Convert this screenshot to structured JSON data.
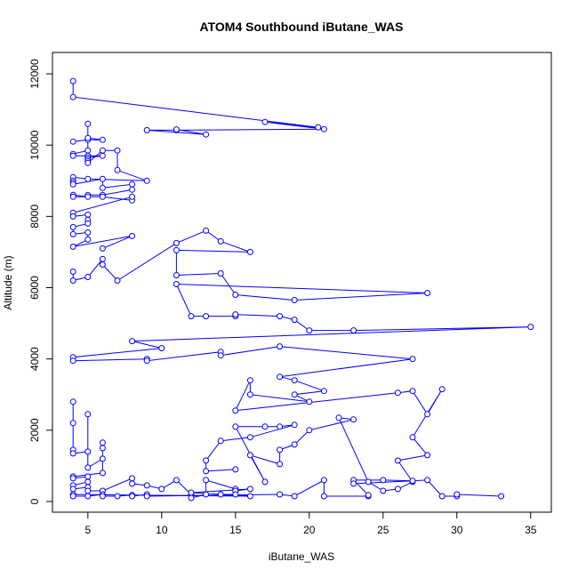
{
  "chart_data": {
    "type": "scatter",
    "title": "ATOM4 Southbound iButane_WAS",
    "xlabel": "iButane_WAS",
    "ylabel": "Altitude (m)",
    "xlim": [
      2.6,
      36.4
    ],
    "ylim": [
      -300,
      12600
    ],
    "xticks": [
      5,
      10,
      15,
      20,
      25,
      30,
      35
    ],
    "yticks": [
      0,
      2000,
      4000,
      6000,
      8000,
      10000,
      12000
    ],
    "grid": false,
    "legend": "none",
    "style": "points connected by lines, open circles",
    "color": "#0000ff",
    "series": [
      {
        "points": [
          [
            4,
            11800
          ],
          [
            4,
            11350
          ],
          [
            20.6,
            10500
          ],
          [
            17,
            10650
          ],
          [
            21,
            10450
          ],
          [
            11,
            10420
          ],
          [
            9,
            10420
          ],
          [
            13,
            10300
          ],
          [
            11,
            10440
          ]
        ]
      },
      {
        "points": [
          [
            4,
            10100
          ],
          [
            5,
            10150
          ],
          [
            6,
            10150
          ],
          [
            5,
            10200
          ],
          [
            5,
            10600
          ],
          [
            5,
            9850
          ],
          [
            4,
            9750
          ],
          [
            4,
            9700
          ],
          [
            5,
            9700
          ],
          [
            6,
            9700
          ],
          [
            5,
            9650
          ],
          [
            5,
            9600
          ],
          [
            5,
            9550
          ],
          [
            5,
            9500
          ],
          [
            6,
            9850
          ],
          [
            7,
            9850
          ],
          [
            7,
            9300
          ],
          [
            9,
            9000
          ],
          [
            5,
            9050
          ],
          [
            4,
            9100
          ],
          [
            4,
            9000
          ],
          [
            4,
            8950
          ],
          [
            4,
            8900
          ],
          [
            6,
            9050
          ],
          [
            6,
            8800
          ],
          [
            8,
            8900
          ],
          [
            8,
            8750
          ],
          [
            6,
            8600
          ],
          [
            5,
            8600
          ],
          [
            5,
            8550
          ],
          [
            4,
            8600
          ],
          [
            4,
            8550
          ],
          [
            6,
            8550
          ],
          [
            8,
            8450
          ],
          [
            8,
            8550
          ],
          [
            4,
            8100
          ],
          [
            4,
            8000
          ],
          [
            5,
            8050
          ],
          [
            5,
            7900
          ],
          [
            5,
            7800
          ],
          [
            4,
            7700
          ],
          [
            4,
            7500
          ],
          [
            5,
            7550
          ],
          [
            5,
            7350
          ],
          [
            4,
            7150
          ],
          [
            8,
            7450
          ],
          [
            6,
            7100
          ]
        ]
      },
      {
        "points": [
          [
            4,
            6450
          ],
          [
            4,
            6200
          ],
          [
            5,
            6300
          ],
          [
            6,
            6800
          ],
          [
            6,
            6650
          ],
          [
            7,
            6200
          ],
          [
            11,
            7250
          ],
          [
            13,
            7600
          ],
          [
            14,
            7300
          ],
          [
            16,
            7000
          ],
          [
            11,
            7050
          ],
          [
            11,
            6350
          ],
          [
            14,
            6400
          ],
          [
            15,
            5800
          ],
          [
            19,
            5650
          ],
          [
            28,
            5850
          ],
          [
            11,
            6100
          ],
          [
            12,
            5200
          ],
          [
            13,
            5200
          ],
          [
            15,
            5200
          ],
          [
            15,
            5250
          ],
          [
            18,
            5200
          ],
          [
            19,
            5100
          ],
          [
            20,
            4800
          ],
          [
            23,
            4800
          ],
          [
            35,
            4900
          ],
          [
            8,
            4500
          ],
          [
            10,
            4300
          ],
          [
            4,
            4050
          ],
          [
            4,
            3950
          ],
          [
            9,
            4000
          ],
          [
            9,
            3950
          ],
          [
            14,
            4200
          ],
          [
            14,
            4100
          ],
          [
            18,
            4350
          ],
          [
            27,
            4000
          ],
          [
            18,
            3500
          ],
          [
            19,
            3400
          ],
          [
            21,
            3100
          ],
          [
            19,
            3000
          ],
          [
            20,
            2800
          ],
          [
            16,
            3000
          ],
          [
            16,
            3400
          ],
          [
            15,
            2550
          ],
          [
            26,
            3050
          ],
          [
            27,
            3100
          ],
          [
            28,
            2450
          ],
          [
            29,
            3150
          ],
          [
            27,
            1800
          ],
          [
            28,
            1300
          ],
          [
            26,
            1150
          ],
          [
            27,
            550
          ],
          [
            26,
            350
          ],
          [
            25,
            300
          ],
          [
            24,
            550
          ],
          [
            22,
            2350
          ],
          [
            23,
            2300
          ],
          [
            20,
            2000
          ],
          [
            19,
            1600
          ],
          [
            18,
            1450
          ],
          [
            18,
            1050
          ],
          [
            16,
            1300
          ],
          [
            17,
            550
          ],
          [
            15,
            2100
          ],
          [
            17,
            2100
          ],
          [
            18,
            2100
          ],
          [
            19,
            2150
          ],
          [
            16,
            1800
          ],
          [
            14,
            1700
          ],
          [
            13,
            1150
          ],
          [
            13,
            850
          ],
          [
            15,
            900
          ]
        ]
      },
      {
        "points": [
          [
            4,
            2800
          ],
          [
            4,
            2200
          ],
          [
            4,
            1450
          ],
          [
            4,
            1350
          ],
          [
            5,
            1400
          ],
          [
            5,
            2450
          ],
          [
            5,
            950
          ],
          [
            6,
            1200
          ],
          [
            6,
            1500
          ],
          [
            6,
            1650
          ],
          [
            6,
            800
          ],
          [
            4,
            700
          ],
          [
            4,
            650
          ],
          [
            5,
            700
          ],
          [
            5,
            550
          ],
          [
            4,
            450
          ],
          [
            4,
            350
          ],
          [
            5,
            400
          ],
          [
            5,
            300
          ],
          [
            6,
            300
          ],
          [
            8,
            650
          ],
          [
            8,
            500
          ],
          [
            9,
            450
          ],
          [
            10,
            350
          ],
          [
            11,
            600
          ],
          [
            12,
            200
          ],
          [
            12,
            100
          ],
          [
            13,
            200
          ],
          [
            13,
            600
          ],
          [
            15,
            350
          ],
          [
            15,
            300
          ],
          [
            16,
            350
          ],
          [
            12,
            250
          ],
          [
            14,
            200
          ],
          [
            15,
            200
          ],
          [
            16,
            150
          ],
          [
            4,
            200
          ],
          [
            4,
            150
          ],
          [
            5,
            150
          ],
          [
            6,
            200
          ],
          [
            6,
            150
          ],
          [
            7,
            150
          ],
          [
            8,
            180
          ],
          [
            8,
            150
          ],
          [
            9,
            200
          ],
          [
            9,
            150
          ],
          [
            18,
            200
          ],
          [
            19,
            150
          ],
          [
            21,
            600
          ],
          [
            21,
            150
          ],
          [
            24,
            150
          ],
          [
            24,
            180
          ],
          [
            23,
            600
          ],
          [
            25,
            600
          ],
          [
            27,
            580
          ],
          [
            23,
            500
          ],
          [
            28,
            600
          ],
          [
            29,
            150
          ],
          [
            30,
            150
          ],
          [
            30,
            200
          ],
          [
            33,
            150
          ]
        ]
      }
    ]
  }
}
